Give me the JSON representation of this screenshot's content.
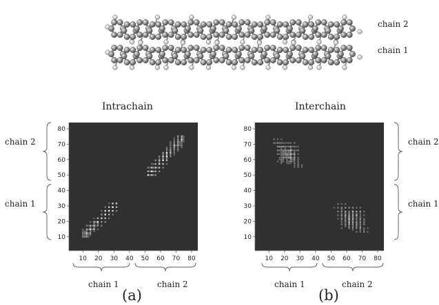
{
  "molecule": {
    "chain_top_label": "chain 2",
    "chain_bottom_label": "chain 1"
  },
  "panels": [
    {
      "letter": "(a)",
      "title": "Intrachain",
      "left_brace_top": "chain 2",
      "left_brace_bottom": "chain 1",
      "bottom_brace_left": "chain 1",
      "bottom_brace_right": "chain 2"
    },
    {
      "letter": "(b)",
      "title": "Interchain",
      "right_brace_top": "chain 2",
      "right_brace_bottom": "chain 1",
      "bottom_brace_left": "chain 1",
      "bottom_brace_right": "chain 2"
    }
  ],
  "chart_data": [
    {
      "type": "heatmap",
      "title": "Intrachain",
      "x_ticks": [
        10,
        20,
        30,
        40,
        50,
        60,
        70,
        80
      ],
      "y_ticks": [
        10,
        20,
        30,
        40,
        50,
        60,
        70,
        80
      ],
      "xlim": [
        1,
        84
      ],
      "ylim": [
        1,
        84
      ],
      "background": "#303030",
      "hot_regions": [
        {
          "block": "chain 1 - chain 1",
          "x_range": [
            10,
            32
          ],
          "y_range": [
            10,
            32
          ]
        },
        {
          "block": "chain 2 - chain 2",
          "x_range": [
            52,
            76
          ],
          "y_range": [
            50,
            76
          ]
        }
      ]
    },
    {
      "type": "heatmap",
      "title": "Interchain",
      "x_ticks": [
        10,
        20,
        30,
        40,
        50,
        60,
        70,
        80
      ],
      "y_ticks": [
        10,
        20,
        30,
        40,
        50,
        60,
        70,
        80
      ],
      "xlim": [
        1,
        84
      ],
      "ylim": [
        1,
        84
      ],
      "background": "#303030",
      "hot_regions": [
        {
          "block": "chain 1 - chain 2",
          "x_range": [
            12,
            32
          ],
          "y_range": [
            54,
            74
          ]
        },
        {
          "block": "chain 2 - chain 1",
          "x_range": [
            52,
            74
          ],
          "y_range": [
            12,
            32
          ]
        }
      ]
    }
  ]
}
